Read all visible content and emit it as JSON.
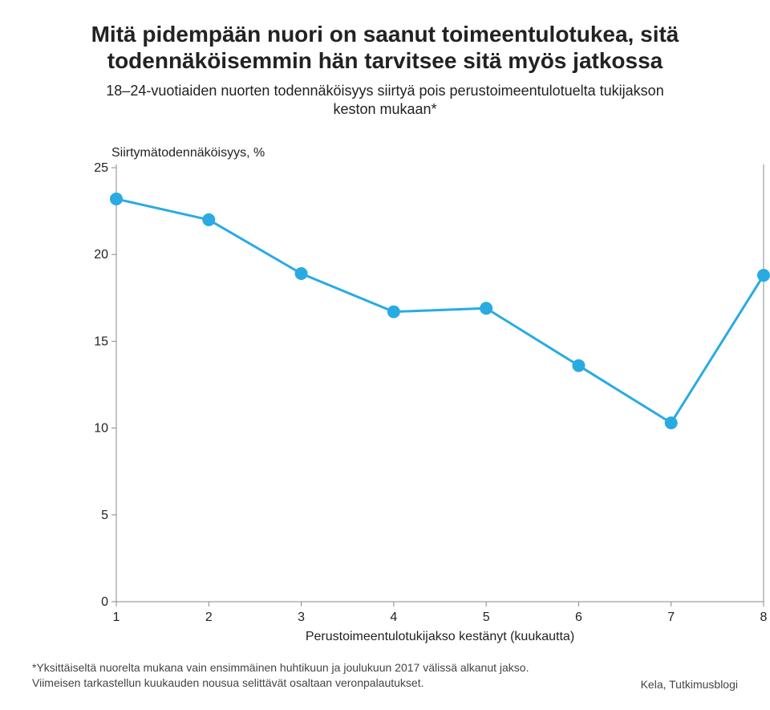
{
  "title_line1": "Mitä pidempään nuori on saanut toimeentulotukea, sitä",
  "title_line2": "todennäköisemmin hän tarvitsee sitä myös jatkossa",
  "title_fontsize": 28,
  "subtitle_line1": "18–24-vuotiaiden nuorten todennäköisyys siirtyä pois perustoimeentulotuelta tukijakson",
  "subtitle_line2": "keston mukaan*",
  "subtitle_fontsize": 18,
  "footnote_line1": "*Yksittäiseltä nuorelta mukana vain ensimmäinen huhtikuun ja joulukuun 2017 välissä alkanut jakso.",
  "footnote_line2": "Viimeisen tarkastellun kuukauden nousua selittävät osaltaan veronpalautukset.",
  "source": "Kela, Tutkimusblogi",
  "chart": {
    "type": "line",
    "y_axis_title": "Siirtymätodennäköisyys, %",
    "x_axis_title": "Perustoimeentulotukijakso kestänyt (kuukautta)",
    "x_values": [
      1,
      2,
      3,
      4,
      5,
      6,
      7,
      8
    ],
    "y_values": [
      23.2,
      22.0,
      18.9,
      16.7,
      16.9,
      13.6,
      10.3,
      18.8
    ],
    "xlim": [
      1,
      8
    ],
    "ylim": [
      0,
      25
    ],
    "ytick_step": 5,
    "xtick_step": 1,
    "line_color": "#29abe2",
    "marker_color": "#29abe2",
    "line_width": 3,
    "marker_radius": 8,
    "axis_color": "#888888",
    "axis_width": 1,
    "background_color": "#ffffff",
    "tick_fontsize": 16,
    "axis_title_fontsize": 16,
    "y_title_fontsize": 16
  }
}
